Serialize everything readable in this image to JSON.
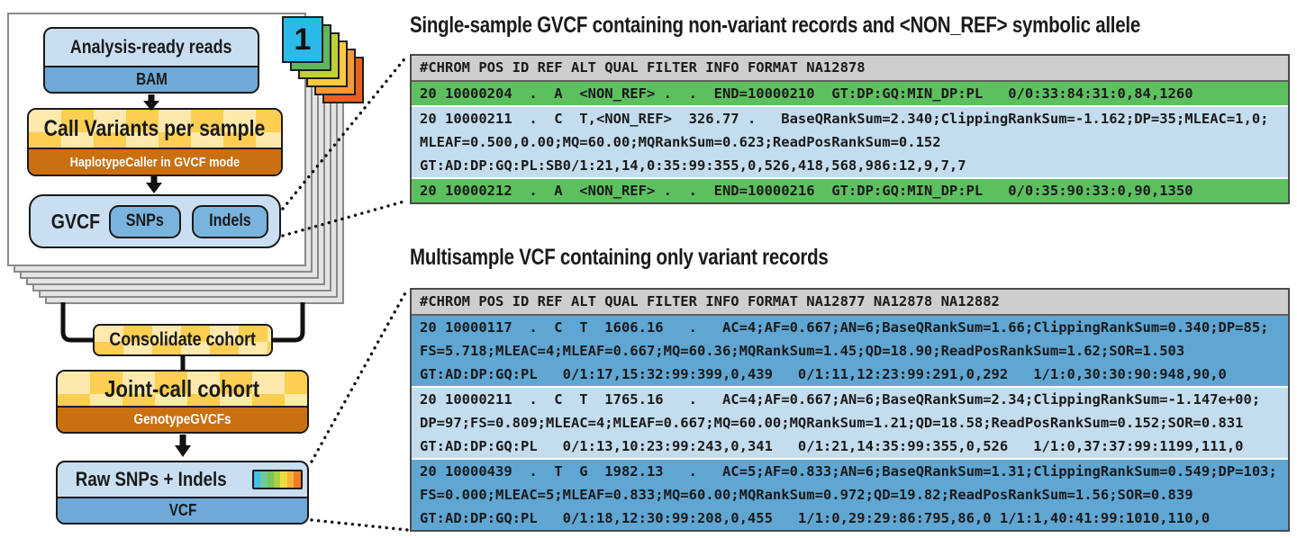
{
  "figure": {
    "badge": "1",
    "card_colors": [
      "#2cb9e9",
      "#5eb75f",
      "#c2cf33",
      "#fcca41",
      "#f59a38",
      "#e8611f"
    ],
    "spectrum_colors": [
      "#45bfe6",
      "#6ec99c",
      "#7cc554",
      "#a9d148",
      "#f0da3e",
      "#f5b33b",
      "#ee7e23"
    ],
    "flow": {
      "analysis_title": "Analysis-ready reads",
      "analysis_format": "BAM",
      "call_title": "Call Variants per sample",
      "call_tool": "HaplotypeCaller in GVCF mode",
      "gvcf_label": "GVCF",
      "chip_snps": "SNPs",
      "chip_indels": "Indels",
      "consolidate_title": "Consolidate cohort",
      "joint_title": "Joint-call cohort",
      "joint_tool": "GenotypeGVCFs",
      "raw_title": "Raw SNPs + Indels",
      "raw_format": "VCF"
    }
  },
  "panels": [
    {
      "title": "Single-sample GVCF containing non-variant records and <NON_REF> symbolic allele",
      "header": "#CHROM POS ID REF ALT QUAL FILTER INFO FORMAT NA12878",
      "rows": [
        {
          "color": "green",
          "lines": [
            "20 10000204  .  A  <NON_REF> .  .  END=10000210  GT:DP:GQ:MIN_DP:PL   0/0:33:84:31:0,84,1260"
          ]
        },
        {
          "color": "lightblue",
          "lines": [
            "20 10000211  .  C  T,<NON_REF>  326.77 .   BaseQRankSum=2.340;ClippingRankSum=-1.162;DP=35;MLEAC=1,0;",
            "MLEAF=0.500,0.00;MQ=60.00;MQRankSum=0.623;ReadPosRankSum=0.152",
            "GT:AD:DP:GQ:PL:SB0/1:21,14,0:35:99:355,0,526,418,568,986:12,9,7,7"
          ]
        },
        {
          "color": "green",
          "lines": [
            "20 10000212  .  A  <NON_REF> .  .  END=10000216  GT:DP:GQ:MIN_DP:PL   0/0:35:90:33:0,90,1350"
          ]
        }
      ]
    },
    {
      "title": "Multisample VCF containing only variant records",
      "header": "#CHROM POS ID REF ALT QUAL FILTER INFO FORMAT NA12877 NA12878 NA12882",
      "rows": [
        {
          "color": "blue",
          "lines": [
            "20 10000117  .  C  T  1606.16   .   AC=4;AF=0.667;AN=6;BaseQRankSum=1.66;ClippingRankSum=0.340;DP=85;",
            "FS=5.718;MLEAC=4;MLEAF=0.667;MQ=60.36;MQRankSum=1.45;QD=18.90;ReadPosRankSum=1.62;SOR=1.503",
            "GT:AD:DP:GQ:PL   0/1:17,15:32:99:399,0,439   0/1:11,12:23:99:291,0,292   1/1:0,30:30:90:948,90,0"
          ]
        },
        {
          "color": "lightblue",
          "lines": [
            "20 10000211  .  C  T  1765.16   .   AC=4;AF=0.667;AN=6;BaseQRankSum=2.34;ClippingRankSum=-1.147e+00;",
            "DP=97;FS=0.809;MLEAC=4;MLEAF=0.667;MQ=60.00;MQRankSum=1.21;QD=18.58;ReadPosRankSum=0.152;SOR=0.831",
            "GT:AD:DP:GQ:PL   0/1:13,10:23:99:243,0,341   0/1:21,14:35:99:355,0,526   1/1:0,37:37:99:1199,111,0"
          ]
        },
        {
          "color": "blue",
          "lines": [
            "20 10000439  .  T  G  1982.13   .   AC=5;AF=0.833;AN=6;BaseQRankSum=1.31;ClippingRankSum=0.549;DP=103;",
            "FS=0.000;MLEAC=5;MLEAF=0.833;MQ=60.00;MQRankSum=0.972;QD=19.82;ReadPosRankSum=1.56;SOR=0.839",
            "GT:AD:DP:GQ:PL   0/1:18,12:30:99:208,0,455   1/1:0,29:29:86:795,86,0 1/1:1,40:41:99:1010,110,0"
          ]
        }
      ]
    }
  ],
  "colors": {
    "box_light_blue": "#c9dff1",
    "bar_blue": "#6fa9d7",
    "chip_blue": "#79b4de",
    "checker_dark": "#fccf52",
    "checker_light": "#fde9ac",
    "orange_bar": "#ca7010",
    "row_green": "#5cc05f",
    "row_light_blue": "#c3ddef",
    "row_blue": "#5fa6d3",
    "header_gray": "#cecece"
  }
}
